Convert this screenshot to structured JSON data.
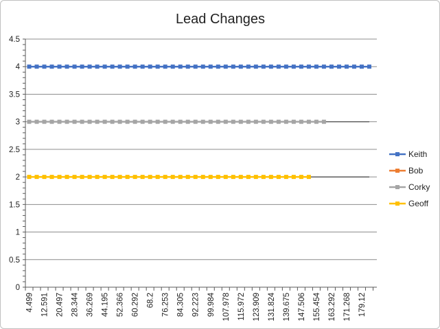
{
  "chart_data": {
    "type": "line",
    "title": "Lead Changes",
    "xlabel": "",
    "ylabel": "",
    "ylim": [
      0,
      4.5
    ],
    "ytick_step": 0.5,
    "yticks": [
      "0",
      "0.5",
      "1",
      "1.5",
      "2",
      "2.5",
      "3",
      "3.5",
      "4",
      "4.5"
    ],
    "grid": true,
    "legend_position": "right",
    "x_tick_labels": [
      "4.499",
      "12.591",
      "20.497",
      "28.344",
      "36.269",
      "44.195",
      "52.366",
      "60.292",
      "68.2",
      "76.253",
      "84.305",
      "92.223",
      "99.984",
      "107.978",
      "115.972",
      "123.909",
      "131.824",
      "139.675",
      "147.506",
      "155.454",
      "163.292",
      "171.268",
      "179.12"
    ],
    "point_count": 46,
    "series": [
      {
        "name": "Keith",
        "color": "#4472C4",
        "value": 4,
        "first_point": 0,
        "last_point": 45,
        "line_end_point": 45
      },
      {
        "name": "Bob",
        "color": "#ED7D31",
        "value": null,
        "first_point": null,
        "last_point": null,
        "line_end_point": null
      },
      {
        "name": "Corky",
        "color": "#A5A5A5",
        "value": 3,
        "first_point": 0,
        "last_point": 39,
        "line_end_point": 45
      },
      {
        "name": "Geoff",
        "color": "#FFC000",
        "value": 2,
        "first_point": 0,
        "last_point": 37,
        "line_end_point": 45
      }
    ]
  }
}
